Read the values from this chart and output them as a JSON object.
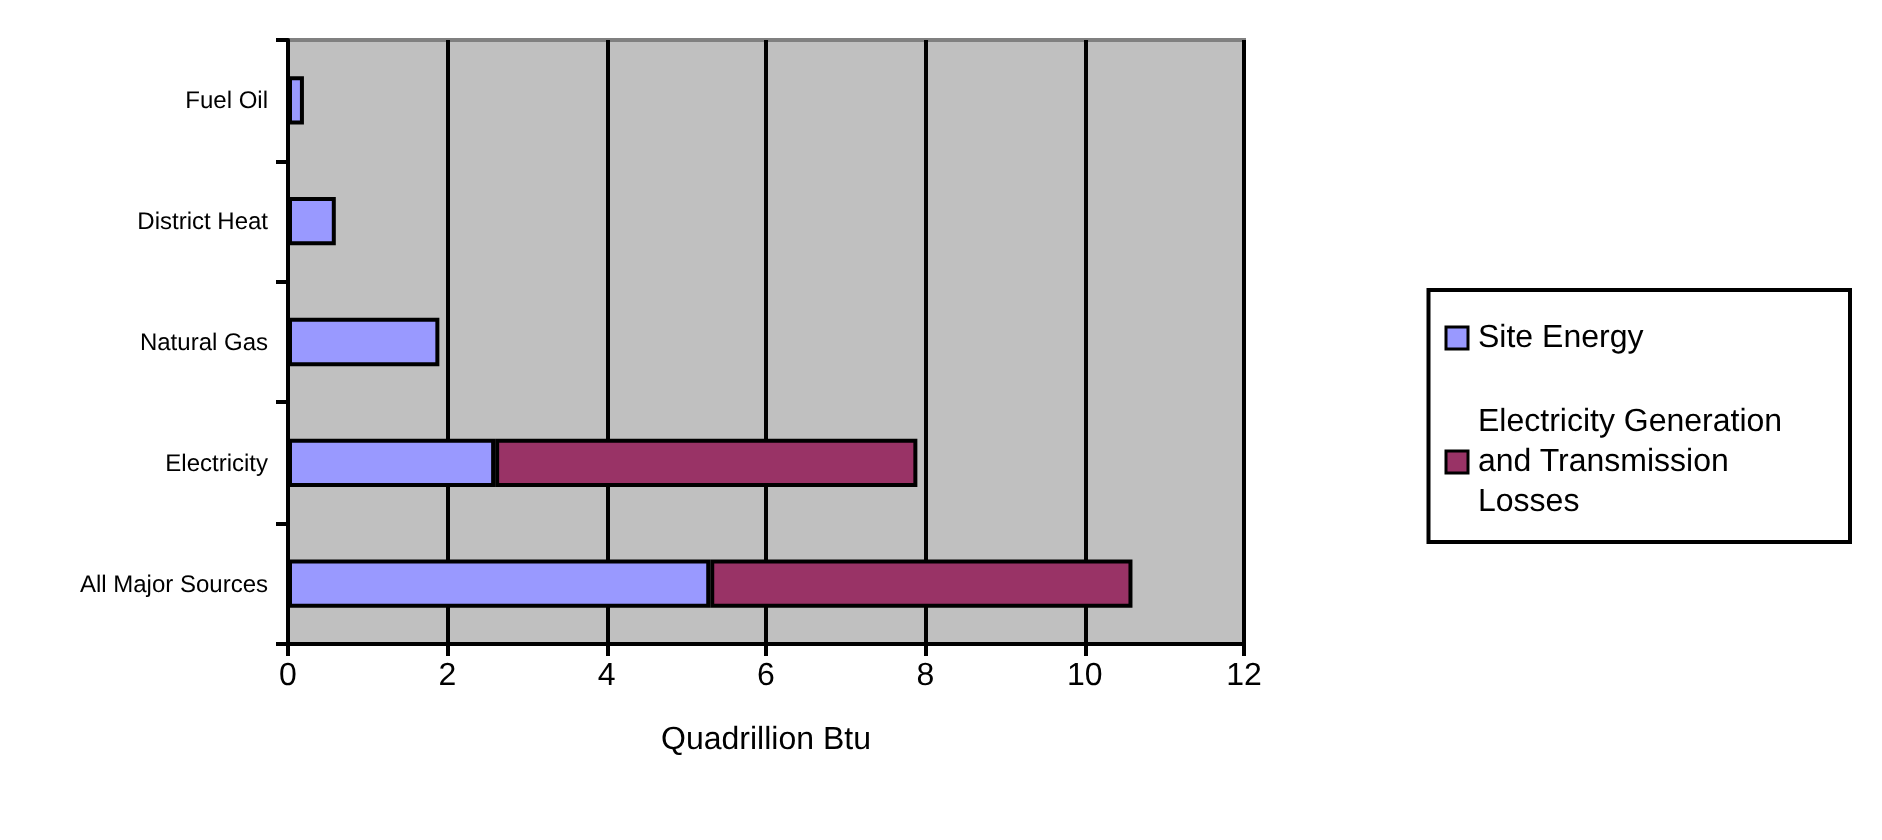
{
  "chart_data": {
    "type": "bar",
    "orientation": "horizontal",
    "stacked": true,
    "xlabel": "Quadrillion Btu",
    "categories": [
      "Fuel Oil",
      "District Heat",
      "Natural Gas",
      "Electricity",
      "All Major Sources"
    ],
    "series": [
      {
        "name": "Site Energy",
        "color": "#9999ff",
        "values": [
          0.2,
          0.6,
          1.9,
          2.6,
          5.3
        ]
      },
      {
        "name": "Electricity Generation and Transmission Losses",
        "color": "#993366",
        "values": [
          null,
          null,
          null,
          5.3,
          5.3
        ]
      }
    ],
    "xlim": [
      0,
      12
    ],
    "xticks": [
      0,
      2,
      4,
      6,
      8,
      10,
      12
    ],
    "grid": "x",
    "legend": "right"
  }
}
